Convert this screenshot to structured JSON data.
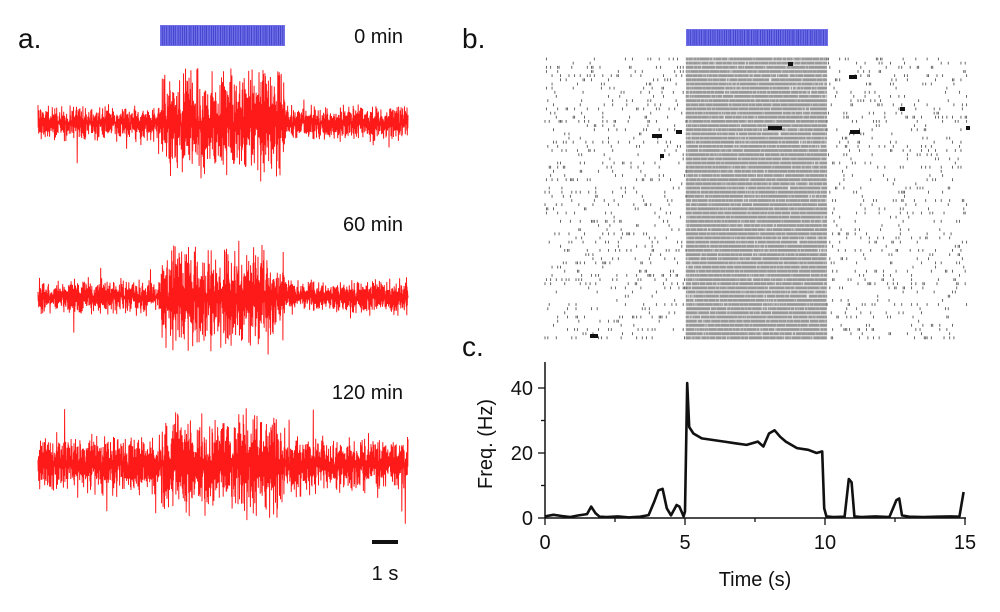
{
  "colors": {
    "trace": "#ff1a1a",
    "stim": "#6f6fe8",
    "stim_dark": "#3b3bc8",
    "axis": "#111111",
    "raster": "#555555",
    "freq_line": "#111111"
  },
  "panel_a": {
    "label": "a.",
    "scale_bar_label": "1 s",
    "traces": [
      {
        "time_label": "0 min",
        "baseline_amp": 0.22,
        "burst_amp": 1.0
      },
      {
        "time_label": "60 min",
        "baseline_amp": 0.22,
        "burst_amp": 0.95
      },
      {
        "time_label": "120 min",
        "baseline_amp": 0.38,
        "burst_amp": 1.0
      }
    ],
    "stimulus": {
      "start_s": 5,
      "end_s": 10
    },
    "scale_bar_s": 1
  },
  "panel_b": {
    "label": "b.",
    "trials": 68,
    "duration_s": 15,
    "stimulus": {
      "start_s": 5,
      "end_s": 10
    },
    "stim_rate_hz": 60,
    "spont_rate_hz": 1.5
  },
  "chart_data": {
    "type": "line",
    "label": "c.",
    "xlabel": "Time (s)",
    "ylabel": "Freq. (Hz)",
    "xlim": [
      0,
      15
    ],
    "ylim": [
      0,
      48
    ],
    "xticks": [
      0,
      5,
      10,
      15
    ],
    "xtick_labels": [
      "0",
      "5",
      "10",
      "15"
    ],
    "yticks": [
      0,
      20,
      40
    ],
    "ytick_labels": [
      "0",
      "20",
      "40"
    ],
    "x": [
      0,
      0.3,
      0.6,
      0.9,
      1.2,
      1.5,
      1.65,
      1.8,
      1.95,
      2.2,
      2.6,
      3.0,
      3.4,
      3.7,
      3.9,
      4.05,
      4.2,
      4.35,
      4.5,
      4.7,
      4.8,
      4.95,
      5.0,
      5.08,
      5.15,
      5.3,
      5.6,
      6.0,
      6.4,
      6.8,
      7.2,
      7.6,
      7.8,
      8.0,
      8.2,
      8.4,
      8.6,
      8.8,
      9.0,
      9.4,
      9.7,
      9.9,
      9.97,
      10.05,
      10.3,
      10.7,
      10.85,
      10.95,
      11.05,
      11.3,
      11.8,
      12.3,
      12.55,
      12.65,
      12.75,
      13.0,
      13.5,
      14.0,
      14.5,
      14.8,
      14.95
    ],
    "y": [
      0.5,
      1,
      0.6,
      0.3,
      0.8,
      1.2,
      3.5,
      1.5,
      0.4,
      0.3,
      0.5,
      0.2,
      0.4,
      0.9,
      5,
      8.5,
      9,
      3,
      0.8,
      4,
      3.5,
      0.5,
      2,
      41.5,
      28,
      26,
      24.5,
      24,
      23.5,
      23,
      22.5,
      23.5,
      22,
      26,
      27,
      25,
      23.5,
      22.5,
      21.5,
      21,
      20,
      20.5,
      3,
      0.5,
      0.3,
      0.4,
      12,
      11,
      0.5,
      0.3,
      0.5,
      0.3,
      5.5,
      6,
      0.8,
      0.4,
      0.3,
      0.4,
      0.5,
      0.4,
      8
    ]
  }
}
